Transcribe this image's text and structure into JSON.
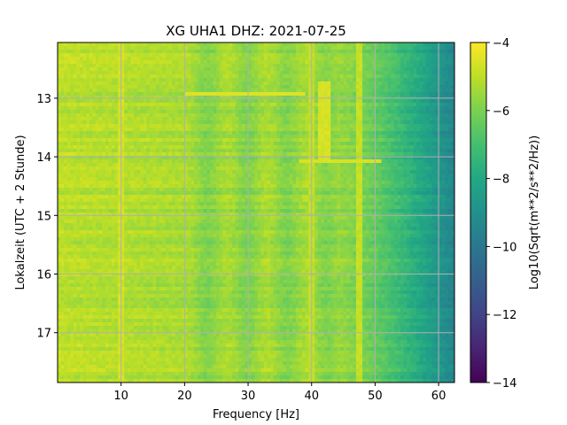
{
  "chart_data": {
    "type": "heatmap",
    "title": "XG UHA1  DHZ: 2021-07-25",
    "xlabel": "Frequency [Hz]",
    "ylabel": "Lokalzeit (UTC + 2 Stunde)",
    "colorbar_label": "Log10(Sqrt(m**2/s**2/Hz))",
    "colormap": "viridis",
    "grid": true,
    "xlim": [
      0,
      62.5
    ],
    "ylim": [
      17.85,
      12.05
    ],
    "clim": [
      -14,
      -4
    ],
    "x_ticks": [
      10,
      20,
      30,
      40,
      50,
      60
    ],
    "y_ticks": [
      13,
      14,
      15,
      16,
      17
    ],
    "colorbar_ticks": [
      -4,
      -6,
      -8,
      -10,
      -12,
      -14
    ],
    "description_features": [
      {
        "kind": "vertical_line",
        "freq_hz": 10,
        "value": -4.7
      },
      {
        "kind": "vertical_line",
        "freq_hz": 40,
        "value": -5.0
      },
      {
        "kind": "vertical_line",
        "freq_hz": 47.5,
        "value": -4.9
      },
      {
        "kind": "vertical_band",
        "freq_hz": [
          41,
          43
        ],
        "time_h": [
          12.7,
          14.1
        ],
        "value": -4.6
      },
      {
        "kind": "horizontal_line",
        "time_h": 12.95,
        "freq_hz": [
          20,
          39
        ],
        "value": -4.5
      },
      {
        "kind": "horizontal_line",
        "time_h": 14.05,
        "freq_hz": [
          38,
          51
        ],
        "value": -4.6
      }
    ],
    "background_model": {
      "low_freq_value": -5.0,
      "mid_freq_value": -5.6,
      "high_freq_value": -9.5,
      "rolloff_start_hz": 44,
      "rolloff_end_hz": 62.5
    }
  }
}
